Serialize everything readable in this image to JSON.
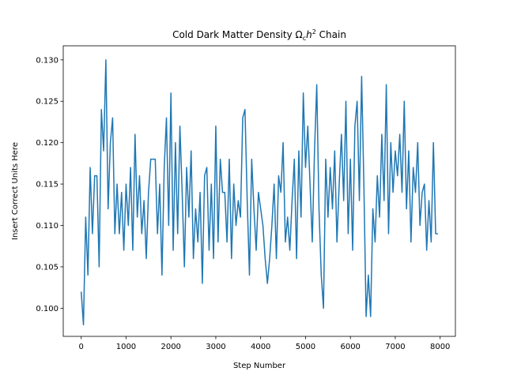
{
  "chart_data": {
    "type": "line",
    "title": [
      "Cold Dark Matter Density Ω",
      "c",
      "h",
      "2",
      " Chain"
    ],
    "xlabel": "Step Number",
    "ylabel": "Insert Correct Units Here",
    "color": "#1f77b4",
    "xlim": [
      -400,
      8340
    ],
    "ylim": [
      0.0966,
      0.1317
    ],
    "xticks": [
      0,
      1000,
      2000,
      3000,
      4000,
      5000,
      6000,
      7000,
      8000
    ],
    "yticks": [
      {
        "value": 0.1,
        "label": "0.100"
      },
      0.105,
      {
        "value": 0.11,
        "label": "0.110"
      },
      0.115,
      {
        "value": 0.12,
        "label": "0.120"
      },
      0.125,
      {
        "value": 0.13,
        "label": "0.130"
      }
    ],
    "x": [
      0,
      50,
      100,
      150,
      200,
      250,
      300,
      350,
      400,
      450,
      500,
      550,
      600,
      650,
      700,
      750,
      800,
      850,
      900,
      950,
      1000,
      1050,
      1100,
      1150,
      1200,
      1250,
      1300,
      1350,
      1400,
      1450,
      1500,
      1550,
      1600,
      1650,
      1700,
      1750,
      1800,
      1850,
      1900,
      1950,
      2000,
      2050,
      2100,
      2150,
      2200,
      2250,
      2300,
      2350,
      2400,
      2450,
      2500,
      2550,
      2600,
      2650,
      2700,
      2750,
      2800,
      2850,
      2900,
      2950,
      3000,
      3050,
      3100,
      3150,
      3200,
      3250,
      3300,
      3350,
      3400,
      3450,
      3500,
      3550,
      3600,
      3650,
      3700,
      3750,
      3800,
      3850,
      3900,
      3950,
      4000,
      4050,
      4100,
      4150,
      4200,
      4250,
      4300,
      4350,
      4400,
      4450,
      4500,
      4550,
      4600,
      4650,
      4700,
      4750,
      4800,
      4850,
      4900,
      4950,
      5000,
      5050,
      5100,
      5150,
      5200,
      5250,
      5300,
      5350,
      5400,
      5450,
      5500,
      5550,
      5600,
      5650,
      5700,
      5750,
      5800,
      5850,
      5900,
      5950,
      6000,
      6050,
      6100,
      6150,
      6200,
      6250,
      6300,
      6350,
      6400,
      6450,
      6500,
      6550,
      6600,
      6650,
      6700,
      6750,
      6800,
      6850,
      6900,
      6950,
      7000,
      7050,
      7100,
      7150,
      7200,
      7250,
      7300,
      7350,
      7400,
      7450,
      7500,
      7550,
      7600,
      7650,
      7700,
      7750,
      7800,
      7850,
      7900,
      7950
    ],
    "values": [
      0.102,
      0.098,
      0.111,
      0.104,
      0.117,
      0.109,
      0.116,
      0.116,
      0.105,
      0.124,
      0.119,
      0.13,
      0.112,
      0.12,
      0.123,
      0.109,
      0.115,
      0.109,
      0.114,
      0.107,
      0.115,
      0.11,
      0.117,
      0.107,
      0.121,
      0.111,
      0.116,
      0.109,
      0.113,
      0.106,
      0.114,
      0.118,
      0.118,
      0.118,
      0.109,
      0.115,
      0.104,
      0.117,
      0.123,
      0.11,
      0.126,
      0.107,
      0.12,
      0.109,
      0.122,
      0.114,
      0.105,
      0.117,
      0.111,
      0.119,
      0.106,
      0.112,
      0.108,
      0.114,
      0.103,
      0.116,
      0.117,
      0.107,
      0.115,
      0.106,
      0.122,
      0.108,
      0.118,
      0.114,
      0.114,
      0.108,
      0.118,
      0.106,
      0.115,
      0.11,
      0.113,
      0.111,
      0.123,
      0.124,
      0.113,
      0.104,
      0.118,
      0.112,
      0.107,
      0.114,
      0.112,
      0.11,
      0.106,
      0.103,
      0.106,
      0.11,
      0.115,
      0.106,
      0.116,
      0.114,
      0.12,
      0.108,
      0.111,
      0.107,
      0.113,
      0.118,
      0.106,
      0.119,
      0.111,
      0.126,
      0.117,
      0.122,
      0.115,
      0.108,
      0.119,
      0.127,
      0.112,
      0.104,
      0.1,
      0.118,
      0.111,
      0.117,
      0.112,
      0.119,
      0.108,
      0.115,
      0.121,
      0.113,
      0.125,
      0.109,
      0.118,
      0.107,
      0.122,
      0.125,
      0.113,
      0.128,
      0.115,
      0.099,
      0.104,
      0.099,
      0.112,
      0.108,
      0.116,
      0.111,
      0.121,
      0.113,
      0.127,
      0.109,
      0.12,
      0.114,
      0.119,
      0.116,
      0.121,
      0.114,
      0.125,
      0.112,
      0.119,
      0.108,
      0.117,
      0.114,
      0.12,
      0.11,
      0.114,
      0.115,
      0.107,
      0.113,
      0.108,
      0.12,
      0.109,
      0.109
    ]
  }
}
